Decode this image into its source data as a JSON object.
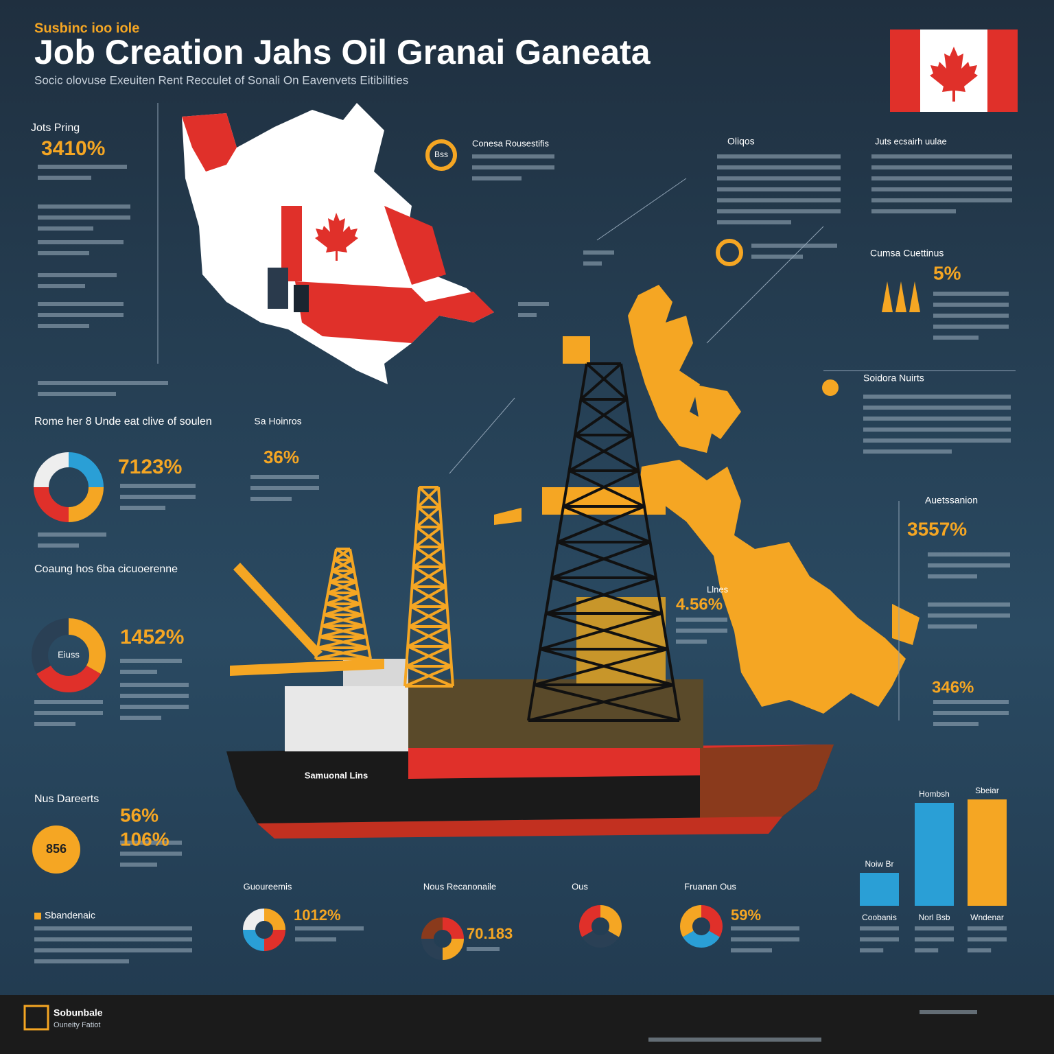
{
  "header": {
    "kicker": "Susbinc ioo iole",
    "title": "Job Creation Jahs Oil Granai Ganeata",
    "subtitle": "Socic olovuse Exeuiten Rent Recculet of Sonali On Eavenvets Eitibilities"
  },
  "left_panel": [
    {
      "heading": "Jots Pring",
      "value": "3410%"
    },
    {
      "heading": "Rome her 8 Unde eat clive of soulen",
      "value": "7123%"
    },
    {
      "heading": "Coaung hos 6ba cicuoerenne",
      "value": "1452%"
    },
    {
      "heading": "Nus Dareerts",
      "value": "56%"
    }
  ],
  "left_extra": {
    "value": "106%",
    "donut_label": "Eiuss",
    "circle_label": "856",
    "section": "Sbandenaic"
  },
  "top_callouts": [
    {
      "badge": "Bss",
      "heading": "Conesa Rousestifis"
    },
    {
      "heading": "Oliqos"
    },
    {
      "heading": "Juts ecsairh uulae"
    }
  ],
  "center_callouts": [
    {
      "heading": "Sa Hoinros",
      "value": "36%"
    },
    {
      "heading": "Llnes",
      "value": "4.56%"
    }
  ],
  "right_callouts": [
    {
      "heading": "Cumsa Cuettinus",
      "value": "5%"
    },
    {
      "heading": "Soidora Nuirts"
    },
    {
      "heading": "Auetssanion",
      "value": "3557%"
    },
    {
      "value": "346%"
    }
  ],
  "bottom_callouts": [
    {
      "heading": "Guoureemis",
      "value": "1012%"
    },
    {
      "heading": "Nous Recanonaile",
      "value": "70.183"
    },
    {
      "heading": "Ous"
    },
    {
      "heading": "Fruanan Ous",
      "value": "59%"
    }
  ],
  "ship_name": "Samuonal Lins",
  "bar_chart": {
    "top_labels": [
      "Noiw Br",
      "Hombsh",
      "Sbeiar"
    ],
    "categories": [
      "Coobanis",
      "Norl Bsb",
      "Wndenar"
    ],
    "values": [
      48,
      150,
      155
    ],
    "colors": [
      "#2a9fd6",
      "#2a9fd6",
      "#f5a623"
    ]
  },
  "footer": {
    "brand": "Sobunbale",
    "tagline": "Ouneity Fatiot"
  }
}
